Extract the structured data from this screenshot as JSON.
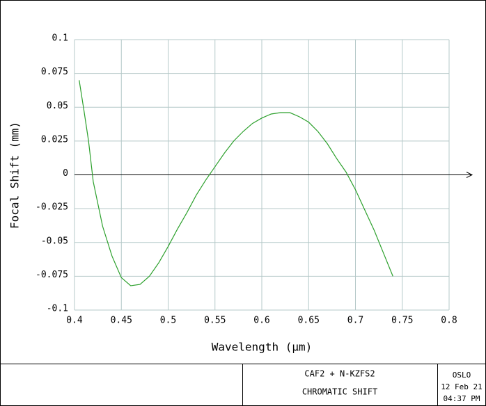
{
  "chart_data": {
    "type": "line",
    "x_label": "Wavelength (μm)",
    "y_label": "Focal Shift (mm)",
    "x": [
      0.405,
      0.41,
      0.415,
      0.42,
      0.43,
      0.44,
      0.45,
      0.46,
      0.47,
      0.48,
      0.49,
      0.5,
      0.51,
      0.52,
      0.53,
      0.54,
      0.55,
      0.56,
      0.57,
      0.58,
      0.59,
      0.6,
      0.61,
      0.62,
      0.63,
      0.64,
      0.65,
      0.66,
      0.67,
      0.68,
      0.69,
      0.7,
      0.71,
      0.72,
      0.73,
      0.74
    ],
    "values": [
      0.07,
      0.048,
      0.025,
      -0.005,
      -0.038,
      -0.06,
      -0.076,
      -0.082,
      -0.081,
      -0.075,
      -0.065,
      -0.053,
      -0.04,
      -0.028,
      -0.015,
      -0.004,
      0.006,
      0.016,
      0.025,
      0.032,
      0.038,
      0.042,
      0.045,
      0.046,
      0.046,
      0.043,
      0.039,
      0.032,
      0.023,
      0.012,
      0.002,
      -0.011,
      -0.026,
      -0.041,
      -0.058,
      -0.075
    ],
    "color": "#2ca02c",
    "xlim": [
      0.4,
      0.8
    ],
    "xticks": [
      0.4,
      0.45,
      0.5,
      0.55,
      0.6,
      0.65,
      0.7,
      0.75,
      0.8
    ],
    "ylim": [
      -0.1,
      0.1
    ],
    "yticks": [
      -0.1,
      -0.075,
      -0.05,
      -0.025,
      0,
      0.025,
      0.05,
      0.075,
      0.1
    ],
    "grid": true
  },
  "footer": {
    "title": "CAF2 + N-KZFS2",
    "subtitle": "CHROMATIC SHIFT",
    "program": "OSLO",
    "date": "12 Feb 21",
    "time": "04:37 PM"
  }
}
